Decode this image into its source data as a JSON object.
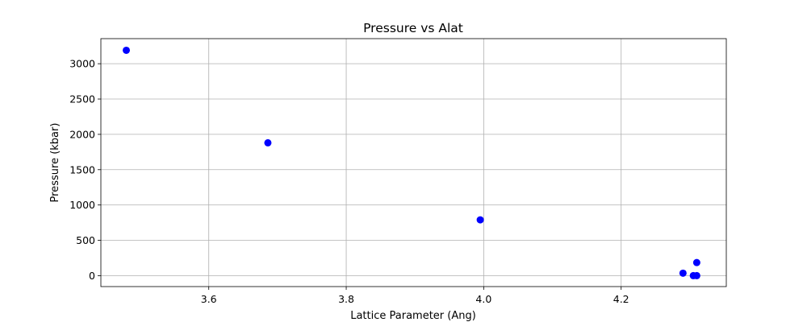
{
  "chart_data": {
    "type": "scatter",
    "title": "Pressure vs Alat",
    "xlabel": "Lattice Parameter (Ang)",
    "ylabel": "Pressure (kbar)",
    "xlim": [
      3.443,
      4.353
    ],
    "ylim": [
      -155,
      3355
    ],
    "xticks": [
      3.6,
      3.8,
      4.0,
      4.2
    ],
    "xtick_labels": [
      "3.6",
      "3.8",
      "4.0",
      "4.2"
    ],
    "yticks": [
      0,
      500,
      1000,
      1500,
      2000,
      2500,
      3000
    ],
    "ytick_labels": [
      "0",
      "500",
      "1000",
      "1500",
      "2000",
      "2500",
      "3000"
    ],
    "grid": true,
    "marker_color": "#0000ff",
    "series": [
      {
        "name": "Pressure",
        "x": [
          3.48,
          3.686,
          3.995,
          4.29,
          4.305,
          4.31,
          4.31
        ],
        "y": [
          3190,
          1880,
          790,
          35,
          0,
          0,
          185
        ]
      }
    ]
  }
}
